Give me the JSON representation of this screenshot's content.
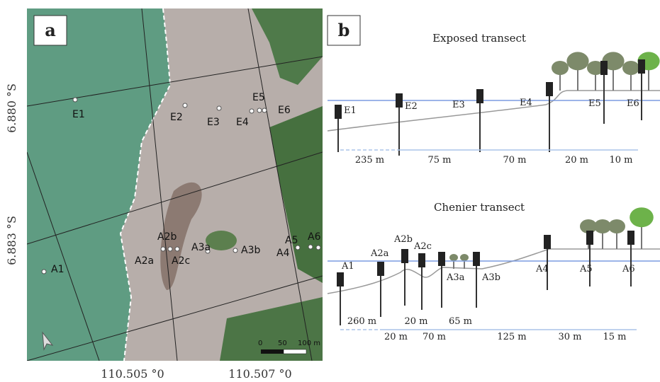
{
  "panel_a": {
    "label": "a",
    "lat_labels": [
      "6.880 °S",
      "6.883 °S"
    ],
    "lon_labels": [
      "110.505 °0",
      "110.507 °0"
    ],
    "stations": [
      "E1",
      "E2",
      "E3",
      "E4",
      "E5",
      "E6",
      "A1",
      "A2a",
      "A2b",
      "A2c",
      "A3a",
      "A3b",
      "A4",
      "A5",
      "A6"
    ],
    "scale_bar": [
      "0",
      "50",
      "100 m"
    ]
  },
  "panel_b": {
    "label": "b",
    "exposed": {
      "title": "Exposed transect",
      "stations": [
        "E1",
        "E2",
        "E3",
        "E4",
        "E5",
        "E6"
      ],
      "distances": [
        "235 m",
        "75 m",
        "70 m",
        "20 m",
        "10 m"
      ]
    },
    "chenier": {
      "title": "Chenier transect",
      "stations": [
        "A1",
        "A2a",
        "A2b",
        "A2c",
        "A3a",
        "A3b",
        "A4",
        "A5",
        "A6"
      ],
      "distances": [
        "260 m",
        "20 m",
        "20 m",
        "70 m",
        "65 m",
        "125 m",
        "30 m",
        "15 m"
      ]
    }
  }
}
